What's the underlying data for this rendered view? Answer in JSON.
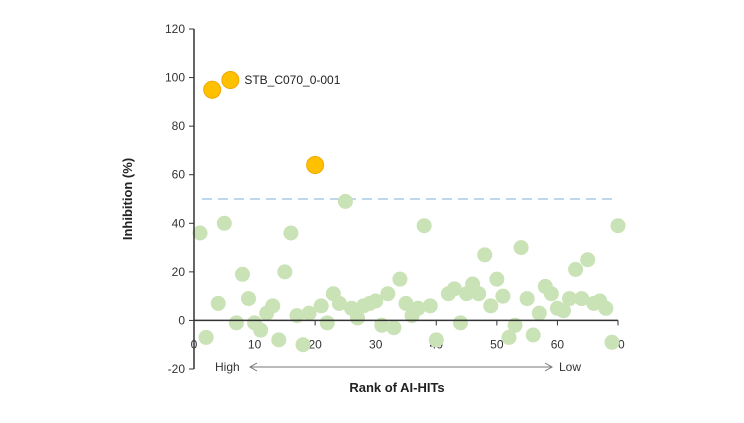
{
  "chart_data": {
    "type": "scatter",
    "xlabel": "Rank of AI-HITs",
    "ylabel": "Inhibition (%)",
    "xlim": [
      0,
      70
    ],
    "ylim": [
      -20,
      120
    ],
    "x_ticks": [
      0,
      10,
      20,
      30,
      40,
      50,
      60,
      70
    ],
    "y_ticks": [
      -20,
      0,
      20,
      40,
      60,
      80,
      100,
      120
    ],
    "threshold": 50,
    "rank_direction": {
      "high": "High",
      "low": "Low"
    },
    "annotation": {
      "text": "STB_C070_0-001",
      "x": 6,
      "y": 99
    },
    "colors": {
      "hit": "#FFC000",
      "hit_edge": "#F0A800",
      "non_hit": "#C9E2B6",
      "threshold_line": "#BDD7EE",
      "axis": "#333333"
    },
    "series": [
      {
        "role": "hit",
        "points": [
          {
            "x": 3,
            "y": 95
          },
          {
            "x": 6,
            "y": 99
          },
          {
            "x": 20,
            "y": 64
          }
        ]
      },
      {
        "role": "non-hit",
        "points": [
          {
            "x": 1,
            "y": 36
          },
          {
            "x": 2,
            "y": -7
          },
          {
            "x": 4,
            "y": 7
          },
          {
            "x": 5,
            "y": 40
          },
          {
            "x": 7,
            "y": -1
          },
          {
            "x": 8,
            "y": 19
          },
          {
            "x": 9,
            "y": 9
          },
          {
            "x": 10,
            "y": -1
          },
          {
            "x": 11,
            "y": -4
          },
          {
            "x": 12,
            "y": 3
          },
          {
            "x": 13,
            "y": 6
          },
          {
            "x": 14,
            "y": -8
          },
          {
            "x": 15,
            "y": 20
          },
          {
            "x": 16,
            "y": 36
          },
          {
            "x": 17,
            "y": 2
          },
          {
            "x": 18,
            "y": -10
          },
          {
            "x": 19,
            "y": 3
          },
          {
            "x": 21,
            "y": 6
          },
          {
            "x": 22,
            "y": -1
          },
          {
            "x": 23,
            "y": 11
          },
          {
            "x": 24,
            "y": 7
          },
          {
            "x": 25,
            "y": 49
          },
          {
            "x": 26,
            "y": 5
          },
          {
            "x": 27,
            "y": 1
          },
          {
            "x": 28,
            "y": 6
          },
          {
            "x": 29,
            "y": 7
          },
          {
            "x": 30,
            "y": 8
          },
          {
            "x": 31,
            "y": -2
          },
          {
            "x": 32,
            "y": 11
          },
          {
            "x": 33,
            "y": -3
          },
          {
            "x": 34,
            "y": 17
          },
          {
            "x": 35,
            "y": 7
          },
          {
            "x": 36,
            "y": 2
          },
          {
            "x": 37,
            "y": 5
          },
          {
            "x": 38,
            "y": 39
          },
          {
            "x": 39,
            "y": 6
          },
          {
            "x": 40,
            "y": -8
          },
          {
            "x": 42,
            "y": 11
          },
          {
            "x": 43,
            "y": 13
          },
          {
            "x": 44,
            "y": -1
          },
          {
            "x": 45,
            "y": 11
          },
          {
            "x": 46,
            "y": 15
          },
          {
            "x": 47,
            "y": 11
          },
          {
            "x": 48,
            "y": 27
          },
          {
            "x": 49,
            "y": 6
          },
          {
            "x": 50,
            "y": 17
          },
          {
            "x": 51,
            "y": 10
          },
          {
            "x": 52,
            "y": -7
          },
          {
            "x": 53,
            "y": -2
          },
          {
            "x": 54,
            "y": 30
          },
          {
            "x": 55,
            "y": 9
          },
          {
            "x": 56,
            "y": -6
          },
          {
            "x": 57,
            "y": 3
          },
          {
            "x": 58,
            "y": 14
          },
          {
            "x": 59,
            "y": 11
          },
          {
            "x": 60,
            "y": 5
          },
          {
            "x": 61,
            "y": 4
          },
          {
            "x": 62,
            "y": 9
          },
          {
            "x": 63,
            "y": 21
          },
          {
            "x": 64,
            "y": 9
          },
          {
            "x": 65,
            "y": 25
          },
          {
            "x": 66,
            "y": 7
          },
          {
            "x": 67,
            "y": 8
          },
          {
            "x": 68,
            "y": 5
          },
          {
            "x": 69,
            "y": -9
          },
          {
            "x": 70,
            "y": 39
          }
        ]
      }
    ]
  }
}
